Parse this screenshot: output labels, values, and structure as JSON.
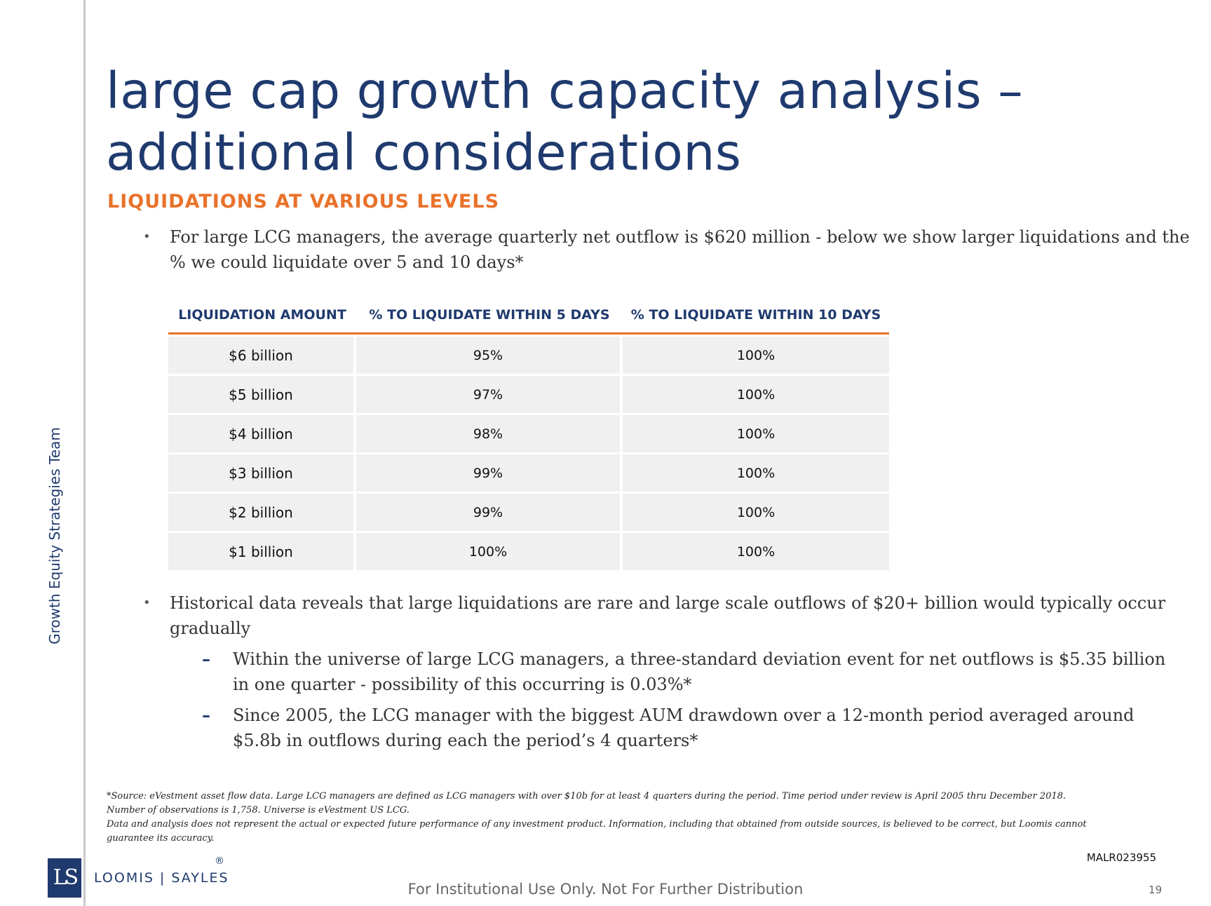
{
  "sidebar": {
    "label": "Growth Equity Strategies Team"
  },
  "title": {
    "line1": "large cap growth capacity analysis –",
    "line2": "additional considerations"
  },
  "subtitle": "LIQUIDATIONS AT VARIOUS LEVELS",
  "bullets": {
    "b1": {
      "line1": "For large LCG managers, the average quarterly net outflow is $620 million - below we show larger liquidations and the",
      "line2": "% we could liquidate over 5 and 10 days*"
    },
    "b2": {
      "line1": "Historical data reveals that large liquidations are rare and large scale outflows of $20+ billion would typically occur",
      "line2": "gradually"
    },
    "s1": {
      "line1": "Within the universe of large LCG managers, a three-standard deviation event for net outflows is $5.35 billion",
      "line2": "in one quarter - possibility of this occurring is 0.03%*"
    },
    "s2": {
      "line1": "Since 2005, the LCG manager with the biggest AUM drawdown over a 12-month period averaged around",
      "line2": "$5.8b in outflows during each the period’s 4 quarters*"
    }
  },
  "table": {
    "headers": [
      "LIQUIDATION AMOUNT",
      "% TO LIQUIDATE WITHIN 5 DAYS",
      "% TO LIQUIDATE WITHIN 10 DAYS"
    ],
    "rows": [
      [
        "$6 billion",
        "95%",
        "100%"
      ],
      [
        "$5 billion",
        "97%",
        "100%"
      ],
      [
        "$4 billion",
        "98%",
        "100%"
      ],
      [
        "$3 billion",
        "99%",
        "100%"
      ],
      [
        "$2 billion",
        "99%",
        "100%"
      ],
      [
        "$1 billion",
        "100%",
        "100%"
      ]
    ]
  },
  "footnote": {
    "line1": "*Source: eVestment asset flow data. Large LCG managers are defined as LCG managers with over $10b for at least 4 quarters during the period.  Time period under review is April 2005 thru December 2018.",
    "line2": "Number of observations is 1,758. Universe is eVestment US LCG.",
    "line3": "Data and analysis does not represent the actual or expected future performance of any investment product. Information, including that obtained from outside sources, is believed to be correct, but Loomis cannot",
    "line4": "guarantee its accuracy."
  },
  "logo": {
    "mark": "LS",
    "name": "LOOMIS | SAYLES",
    "reg": "®"
  },
  "doc_id": "MALR023955",
  "footer": "For Institutional Use Only. Not For Further Distribution",
  "page_number": "19",
  "colors": {
    "navy": "#1f3a6e",
    "orange": "#e9722b",
    "cell": "#f0f0f0"
  }
}
